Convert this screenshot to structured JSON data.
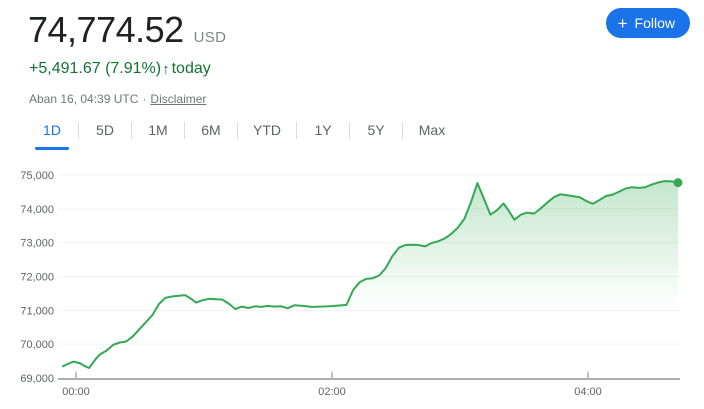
{
  "header": {
    "price": "74,774.52",
    "currency": "USD",
    "change_text": "+5,491.67 (7.91%)",
    "change_arrow": "↑",
    "change_suffix": "today",
    "timestamp": "Aban 16, 04:39 UTC",
    "separator": "·",
    "disclaimer_label": "Disclaimer"
  },
  "follow_button": {
    "icon": "+",
    "label": "Follow"
  },
  "tabs": {
    "items": [
      {
        "label": "1D",
        "active": true
      },
      {
        "label": "5D",
        "active": false
      },
      {
        "label": "1M",
        "active": false
      },
      {
        "label": "6M",
        "active": false
      },
      {
        "label": "YTD",
        "active": false
      },
      {
        "label": "1Y",
        "active": false
      },
      {
        "label": "5Y",
        "active": false
      },
      {
        "label": "Max",
        "active": false
      }
    ]
  },
  "colors": {
    "accent_blue": "#1a73e8",
    "positive_green_text": "#137333",
    "line_green": "#34a853",
    "grid_line": "#f1f3f4",
    "axis_line": "#abafb3",
    "label_gray": "#5f6368"
  },
  "chart_data": {
    "type": "area",
    "x_unit": "minutes since 00:00 UTC",
    "xlim_minutes": [
      0,
      282
    ],
    "ylim": [
      69000,
      75000
    ],
    "grid": true,
    "legend": false,
    "end_dot": true,
    "last_value": 74774.52,
    "line_color": "#34a853",
    "fill_gradient_top": "rgba(52,168,83,0.30)",
    "fill_gradient_bottom": "rgba(52,168,83,0)",
    "x_ticks": [
      {
        "t": 0,
        "label": "00:00"
      },
      {
        "t": 120,
        "label": "02:00"
      },
      {
        "t": 240,
        "label": "04:00"
      }
    ],
    "y_ticks": [
      {
        "v": 69000,
        "label": "69,000"
      },
      {
        "v": 70000,
        "label": "70,000"
      },
      {
        "v": 71000,
        "label": "71,000"
      },
      {
        "v": 72000,
        "label": "72,000"
      },
      {
        "v": 73000,
        "label": "73,000"
      },
      {
        "v": 74000,
        "label": "74,000"
      },
      {
        "v": 75000,
        "label": "75,000"
      }
    ],
    "series": [
      {
        "name": "price_usd",
        "points": [
          [
            0,
            69350
          ],
          [
            3,
            69440
          ],
          [
            5,
            69485
          ],
          [
            8,
            69430
          ],
          [
            10,
            69350
          ],
          [
            12,
            69300
          ],
          [
            15,
            69560
          ],
          [
            17,
            69700
          ],
          [
            20,
            69810
          ],
          [
            23,
            69980
          ],
          [
            26,
            70050
          ],
          [
            29,
            70080
          ],
          [
            32,
            70230
          ],
          [
            35,
            70440
          ],
          [
            38,
            70650
          ],
          [
            41,
            70860
          ],
          [
            44,
            71190
          ],
          [
            47,
            71370
          ],
          [
            50,
            71410
          ],
          [
            53,
            71430
          ],
          [
            56,
            71450
          ],
          [
            59,
            71330
          ],
          [
            61,
            71230
          ],
          [
            64,
            71300
          ],
          [
            67,
            71340
          ],
          [
            70,
            71330
          ],
          [
            73,
            71320
          ],
          [
            76,
            71200
          ],
          [
            79,
            71040
          ],
          [
            82,
            71110
          ],
          [
            85,
            71070
          ],
          [
            88,
            71120
          ],
          [
            91,
            71100
          ],
          [
            94,
            71130
          ],
          [
            97,
            71110
          ],
          [
            100,
            71120
          ],
          [
            103,
            71060
          ],
          [
            106,
            71150
          ],
          [
            110,
            71130
          ],
          [
            114,
            71100
          ],
          [
            118,
            71110
          ],
          [
            122,
            71120
          ],
          [
            126,
            71140
          ],
          [
            130,
            71160
          ],
          [
            133,
            71600
          ],
          [
            136,
            71830
          ],
          [
            139,
            71930
          ],
          [
            142,
            71950
          ],
          [
            145,
            72030
          ],
          [
            148,
            72250
          ],
          [
            151,
            72600
          ],
          [
            154,
            72850
          ],
          [
            157,
            72930
          ],
          [
            160,
            72940
          ],
          [
            163,
            72930
          ],
          [
            166,
            72890
          ],
          [
            169,
            72990
          ],
          [
            172,
            73040
          ],
          [
            175,
            73120
          ],
          [
            178,
            73260
          ],
          [
            181,
            73440
          ],
          [
            184,
            73700
          ],
          [
            187,
            74180
          ],
          [
            190,
            74760
          ],
          [
            193,
            74300
          ],
          [
            196,
            73830
          ],
          [
            199,
            73960
          ],
          [
            202,
            74160
          ],
          [
            204,
            73980
          ],
          [
            207,
            73680
          ],
          [
            210,
            73830
          ],
          [
            213,
            73890
          ],
          [
            216,
            73860
          ],
          [
            219,
            74010
          ],
          [
            222,
            74180
          ],
          [
            225,
            74340
          ],
          [
            228,
            74430
          ],
          [
            231,
            74400
          ],
          [
            234,
            74370
          ],
          [
            237,
            74340
          ],
          [
            240,
            74230
          ],
          [
            243,
            74150
          ],
          [
            246,
            74260
          ],
          [
            249,
            74380
          ],
          [
            252,
            74420
          ],
          [
            255,
            74510
          ],
          [
            258,
            74600
          ],
          [
            261,
            74640
          ],
          [
            264,
            74620
          ],
          [
            267,
            74640
          ],
          [
            270,
            74720
          ],
          [
            273,
            74780
          ],
          [
            276,
            74820
          ],
          [
            279,
            74810
          ],
          [
            282,
            74774.52
          ]
        ]
      }
    ]
  }
}
